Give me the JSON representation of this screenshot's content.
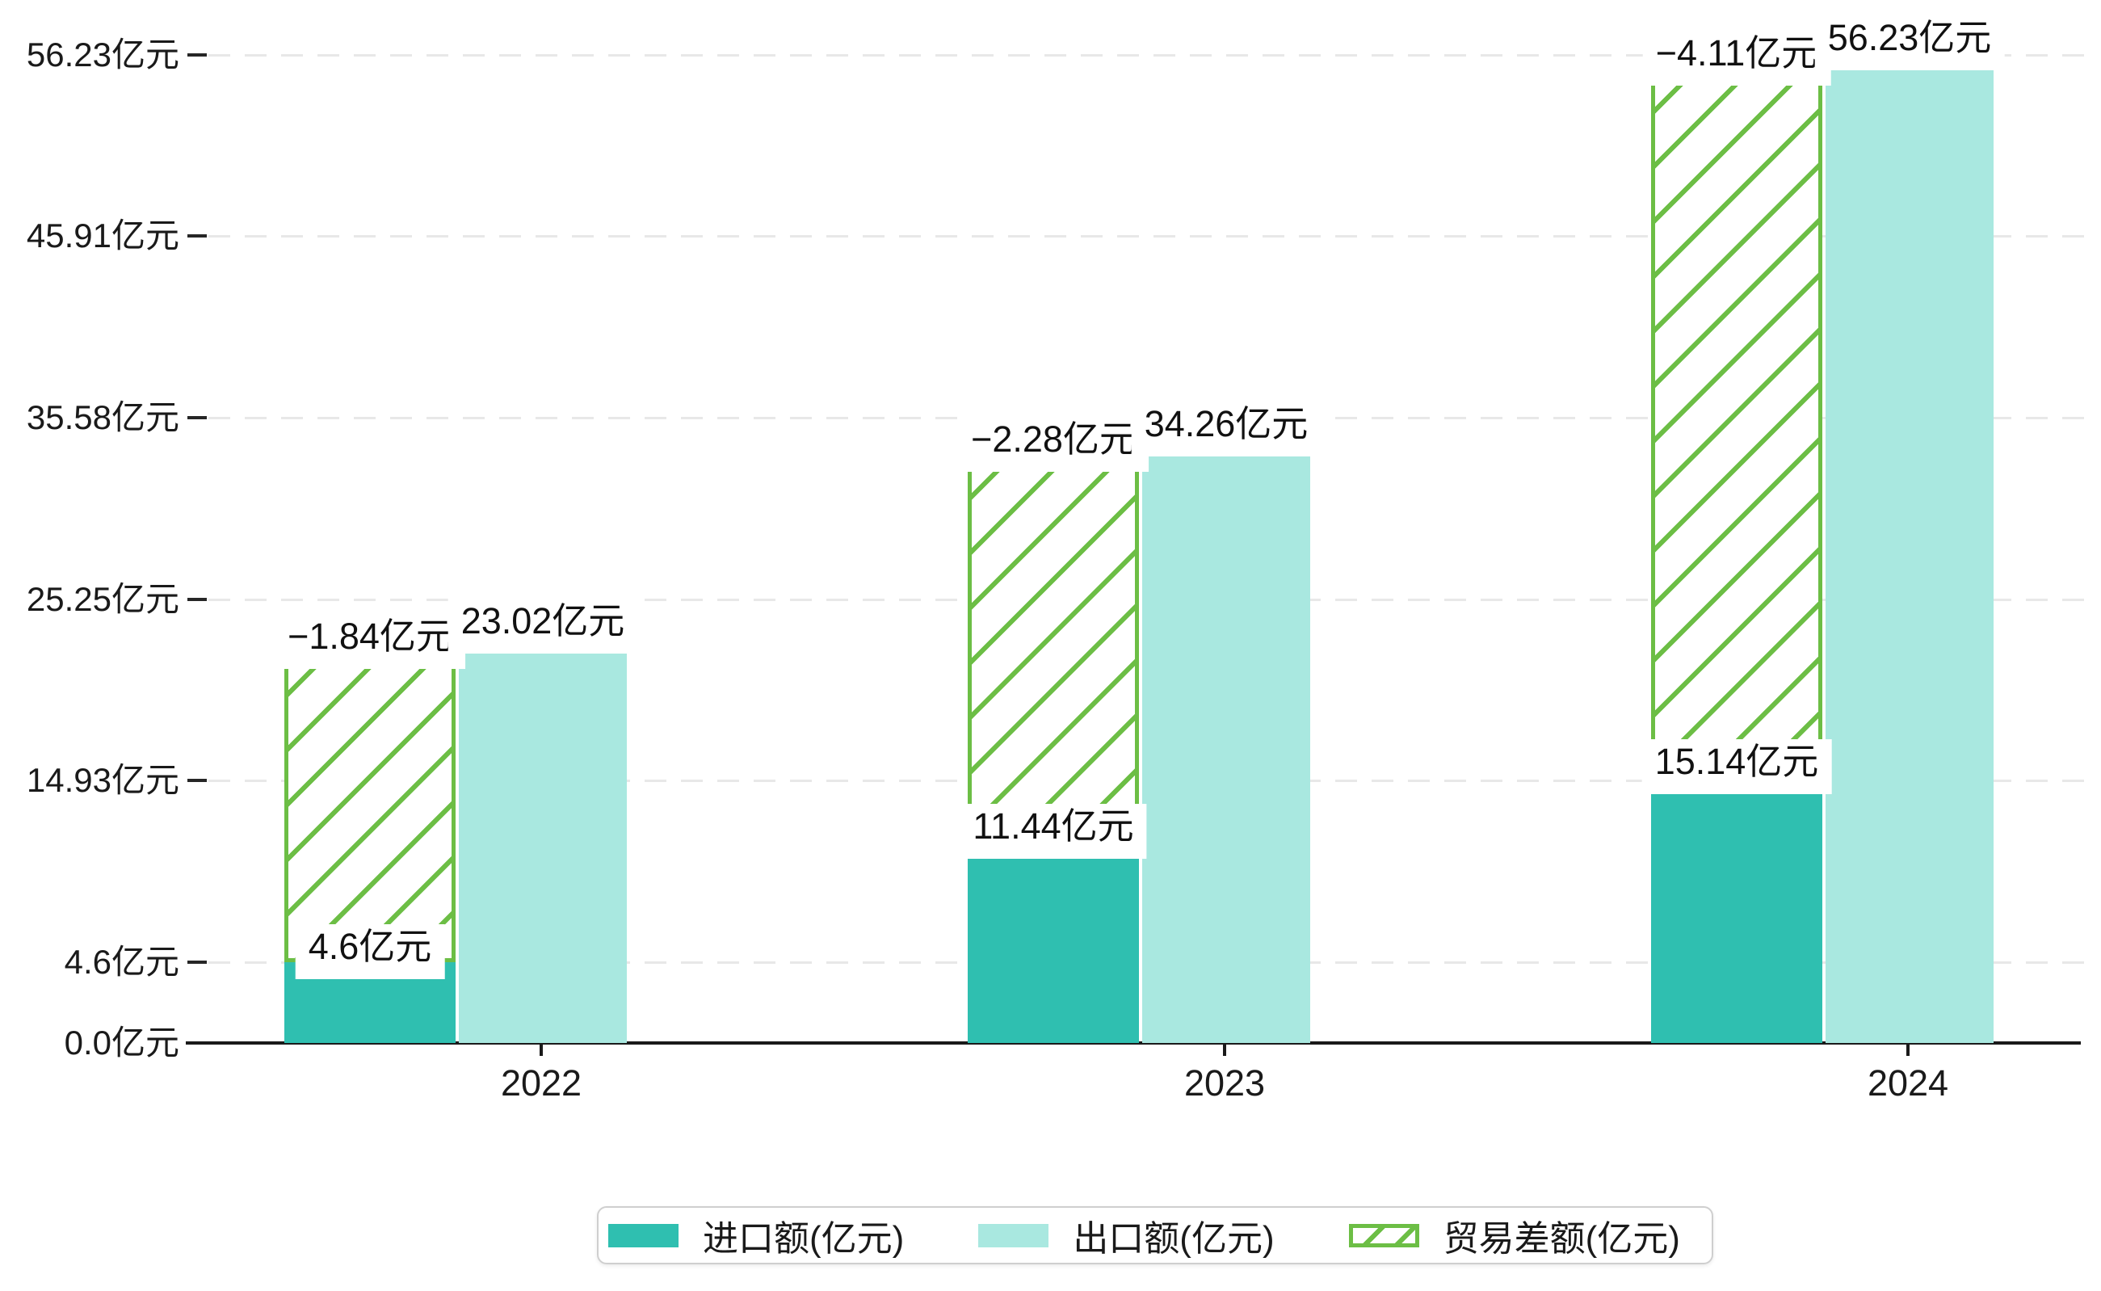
{
  "chart_data": {
    "type": "bar",
    "title": "",
    "categories": [
      "2022",
      "2023",
      "2024"
    ],
    "series": [
      {
        "name": "进口额(亿元)",
        "role": "import",
        "values": [
          4.6,
          11.44,
          15.14
        ],
        "value_labels": [
          "4.6亿元",
          "11.44亿元",
          "15.14亿元"
        ],
        "color": "#2FBFB0"
      },
      {
        "name": "出口额(亿元)",
        "role": "export",
        "values": [
          23.02,
          34.26,
          56.23
        ],
        "value_labels": [
          "23.02亿元",
          "34.26亿元",
          "56.23亿元"
        ],
        "color": "#A9E8E0"
      },
      {
        "name": "贸易差额(亿元)",
        "role": "trade-difference",
        "values": [
          -1.84,
          -2.28,
          -4.11
        ],
        "value_labels": [
          "−1.84亿元",
          "−2.28亿元",
          "−4.11亿元"
        ],
        "color": "#6CBE45",
        "style": "hatched",
        "bar_geometry": "hatched bar drawn over import bar, spanning from import value up to export value"
      }
    ],
    "y_axis": {
      "unit": "亿元",
      "min": 0,
      "max": 56.23,
      "ticks": [
        {
          "value": 0,
          "label": "0.0亿元"
        },
        {
          "value": 4.6,
          "label": "4.6亿元"
        },
        {
          "value": 14.93,
          "label": "14.93亿元"
        },
        {
          "value": 25.25,
          "label": "25.25亿元"
        },
        {
          "value": 35.58,
          "label": "35.58亿元"
        },
        {
          "value": 45.91,
          "label": "45.91亿元"
        },
        {
          "value": 56.23,
          "label": "56.23亿元"
        }
      ]
    },
    "grid": "horizontal dashed",
    "legend": {
      "position": "bottom-center",
      "entries": [
        "进口额(亿元)",
        "出口额(亿元)",
        "贸易差额(亿元)"
      ]
    },
    "colors": {
      "import": "#2FBFB0",
      "export": "#A9E8E0",
      "difference": "#6CBE45",
      "axis": "#1A1A1A",
      "grid": "#E8E8E8",
      "label_text": "#111111",
      "background": "#FFFFFF"
    }
  }
}
